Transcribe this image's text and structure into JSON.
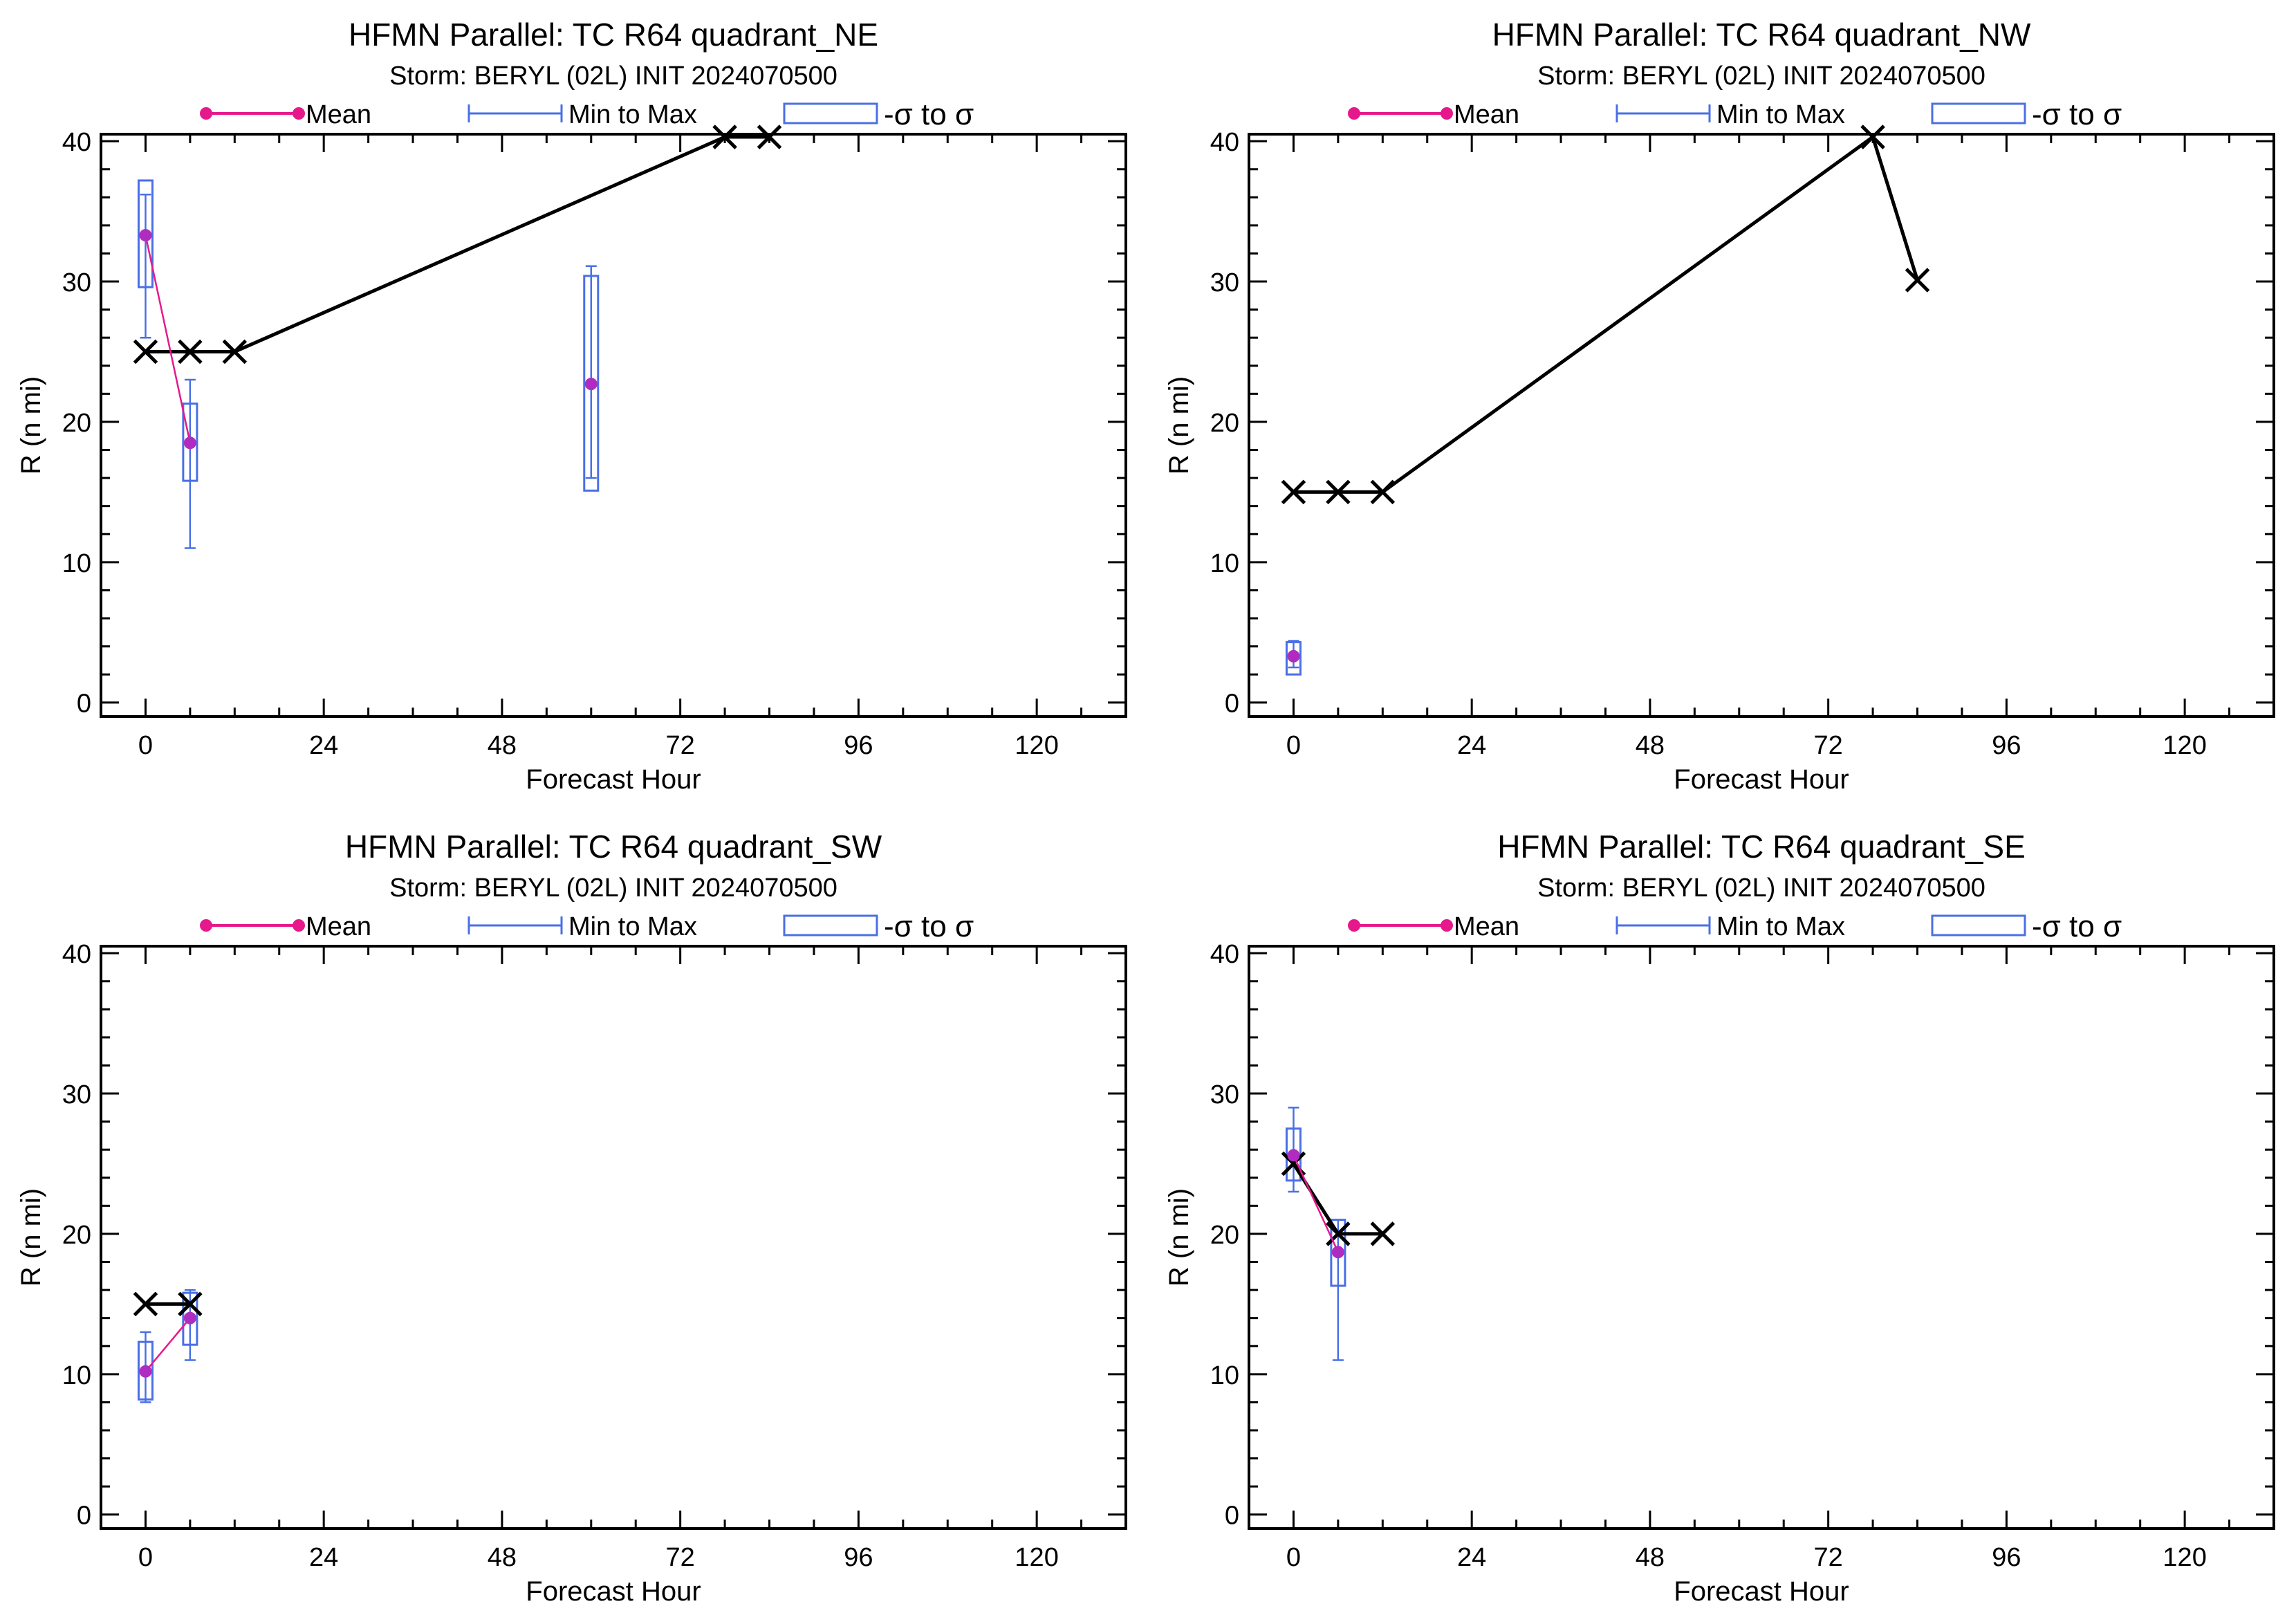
{
  "colors": {
    "mean": "#e6198c",
    "mean_dot": "#b02cc0",
    "range": "#4a6fe6",
    "obs": "#000000"
  },
  "legend": {
    "mean": "Mean",
    "range": "Min to Max",
    "sigma": "-σ to σ"
  },
  "chart_data": [
    {
      "type": "line",
      "title": "HFMN Parallel: TC  R64 quadrant_NE",
      "subtitle": "Storm: BERYL (02L) INIT 2024070500",
      "xlabel": "Forecast Hour",
      "ylabel": "R (n mi)",
      "xlim": [
        -6,
        132
      ],
      "ylim": [
        -1,
        40.5
      ],
      "xticks": [
        0,
        24,
        48,
        72,
        96,
        120
      ],
      "yticks": [
        0,
        10,
        20,
        30,
        40
      ],
      "stats": [
        {
          "x": 0,
          "mean": 33.3,
          "min": 26,
          "max": 36.2,
          "sd_low": 29.6,
          "sd_high": 37.2
        },
        {
          "x": 6,
          "mean": 18.5,
          "min": 11,
          "max": 23,
          "sd_low": 15.8,
          "sd_high": 21.3
        },
        {
          "x": 60,
          "mean": 22.7,
          "min": 16,
          "max": 31.1,
          "sd_low": 15.1,
          "sd_high": 30.4
        }
      ],
      "mean_line_x": [
        0,
        6
      ],
      "obs": [
        {
          "x": 0,
          "y": 25
        },
        {
          "x": 6,
          "y": 25
        },
        {
          "x": 12,
          "y": 25
        },
        {
          "x": 78,
          "y": 40.3
        },
        {
          "x": 84,
          "y": 40.3
        }
      ]
    },
    {
      "type": "line",
      "title": "HFMN Parallel: TC  R64 quadrant_NW",
      "subtitle": "Storm: BERYL (02L) INIT 2024070500",
      "xlabel": "Forecast Hour",
      "ylabel": "R (n mi)",
      "xlim": [
        -6,
        132
      ],
      "ylim": [
        -1,
        40.5
      ],
      "xticks": [
        0,
        24,
        48,
        72,
        96,
        120
      ],
      "yticks": [
        0,
        10,
        20,
        30,
        40
      ],
      "stats": [
        {
          "x": 0,
          "mean": 3.3,
          "min": 2.5,
          "max": 4.4,
          "sd_low": 2,
          "sd_high": 4.3
        }
      ],
      "mean_line_x": [],
      "obs": [
        {
          "x": 0,
          "y": 15
        },
        {
          "x": 6,
          "y": 15
        },
        {
          "x": 12,
          "y": 15
        },
        {
          "x": 78,
          "y": 40.3
        },
        {
          "x": 84,
          "y": 30.1
        }
      ]
    },
    {
      "type": "line",
      "title": "HFMN Parallel: TC  R64 quadrant_SW",
      "subtitle": "Storm: BERYL (02L) INIT 2024070500",
      "xlabel": "Forecast Hour",
      "ylabel": "R (n mi)",
      "xlim": [
        -6,
        132
      ],
      "ylim": [
        -1,
        40.5
      ],
      "xticks": [
        0,
        24,
        48,
        72,
        96,
        120
      ],
      "yticks": [
        0,
        10,
        20,
        30,
        40
      ],
      "stats": [
        {
          "x": 0,
          "mean": 10.2,
          "min": 8,
          "max": 13,
          "sd_low": 8.2,
          "sd_high": 12.3
        },
        {
          "x": 6,
          "mean": 14,
          "min": 11,
          "max": 16,
          "sd_low": 12.1,
          "sd_high": 15.8
        }
      ],
      "mean_line_x": [
        0,
        6
      ],
      "obs": [
        {
          "x": 0,
          "y": 15
        },
        {
          "x": 6,
          "y": 15
        }
      ]
    },
    {
      "type": "line",
      "title": "HFMN Parallel: TC  R64 quadrant_SE",
      "subtitle": "Storm: BERYL (02L) INIT 2024070500",
      "xlabel": "Forecast Hour",
      "ylabel": "R (n mi)",
      "xlim": [
        -6,
        132
      ],
      "ylim": [
        -1,
        40.5
      ],
      "xticks": [
        0,
        24,
        48,
        72,
        96,
        120
      ],
      "yticks": [
        0,
        10,
        20,
        30,
        40
      ],
      "stats": [
        {
          "x": 0,
          "mean": 25.6,
          "min": 23,
          "max": 29,
          "sd_low": 23.8,
          "sd_high": 27.5
        },
        {
          "x": 6,
          "mean": 18.7,
          "min": 11,
          "max": 21,
          "sd_low": 16.3,
          "sd_high": 21
        }
      ],
      "mean_line_x": [
        0,
        6
      ],
      "obs": [
        {
          "x": 0,
          "y": 25
        },
        {
          "x": 6,
          "y": 20
        },
        {
          "x": 12,
          "y": 20
        }
      ]
    }
  ]
}
